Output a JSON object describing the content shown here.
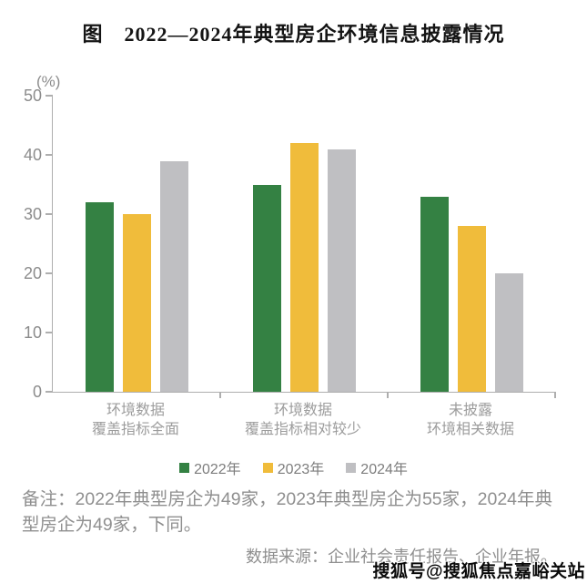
{
  "title": "图　2022—2024年典型房企环境信息披露情况",
  "chart_data": {
    "type": "bar",
    "title": "图 2022—2024年典型房企环境信息披露情况",
    "unit_label": "(%)",
    "categories": [
      "环境数据\n覆盖指标全面",
      "环境数据\n覆盖指标相对较少",
      "未披露\n环境相关数据"
    ],
    "series": [
      {
        "name": "2022年",
        "color": "#348143",
        "values": [
          32,
          35,
          33
        ]
      },
      {
        "name": "2023年",
        "color": "#F0BC3B",
        "values": [
          30,
          42,
          28
        ]
      },
      {
        "name": "2024年",
        "color": "#BFBFC2",
        "values": [
          39,
          41,
          20
        ]
      }
    ],
    "ylabel": "(%)",
    "xlabel": "",
    "ylim": [
      0,
      50
    ],
    "yticks": [
      0,
      10,
      20,
      30,
      40,
      50
    ],
    "grid": false,
    "legend_position": "bottom"
  },
  "note": "备注：2022年典型房企为49家，2023年典型房企为55家，2024年典型房企为49家，下同。",
  "source": "数据来源：企业社会责任报告、企业年报。",
  "watermark": "搜狐号@搜狐焦点嘉峪关站",
  "colors": {
    "series_2022": "#348143",
    "series_2023": "#F0BC3B",
    "series_2024": "#BFBFC2",
    "axis": "#AEAEAE",
    "tick_text": "#8C8C8C",
    "category_text": "#9C9C9C",
    "legend_text": "#7D7D7D",
    "note_text": "#8F8F8F",
    "title_text": "#141414"
  }
}
